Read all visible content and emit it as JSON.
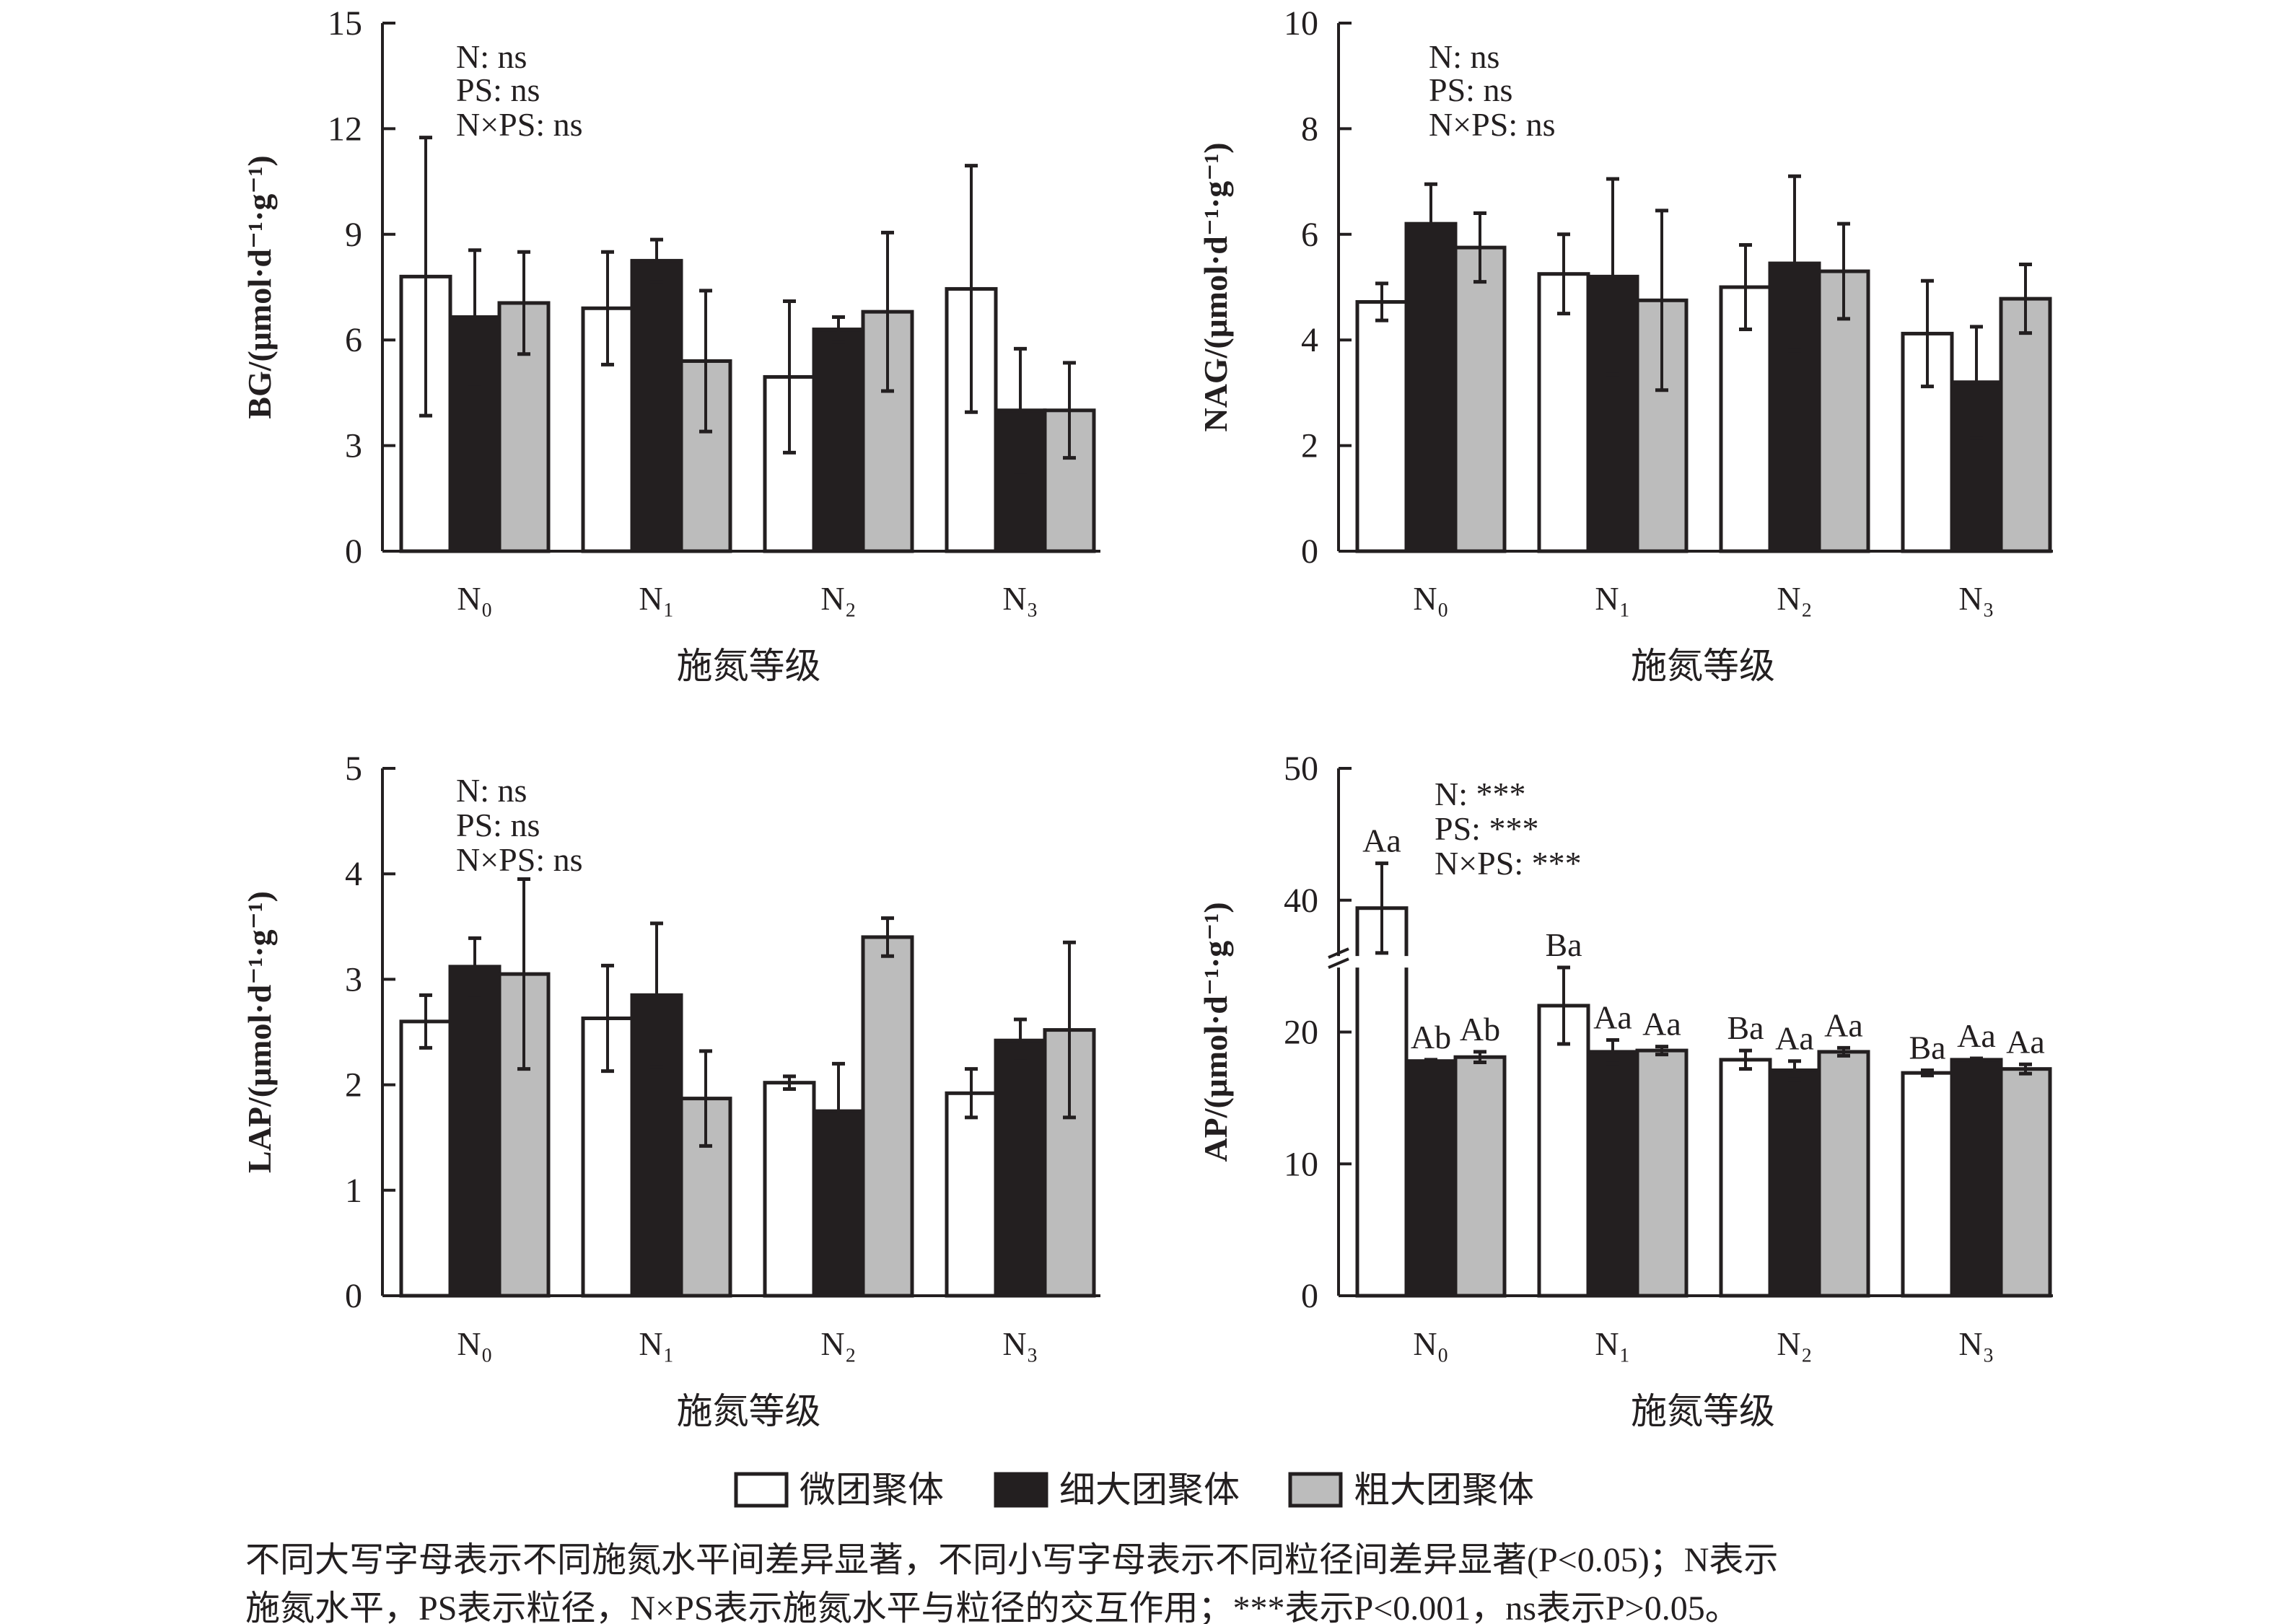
{
  "legend": [
    {
      "name": "微团聚体",
      "color": "#ffffff"
    },
    {
      "name": "细大团聚体",
      "color": "#231f20"
    },
    {
      "name": "粗大团聚体",
      "color": "#bcbcbc"
    }
  ],
  "caption": [
    "不同大写字母表示不同施氮水平间差异显著，不同小写字母表示不同粒径间差异显著(P<0.05)；N表示",
    "施氮水平，PS表示粒径，N×PS表示施氮水平与粒径的交互作用；***表示P<0.001，ns表示P>0.05。"
  ],
  "chart_data": [
    {
      "type": "bar",
      "ylabel": "BG/(μmol·d⁻¹·g⁻¹)",
      "xlabel": "施氮等级",
      "categories": [
        "N₀",
        "N₁",
        "N₂",
        "N₃"
      ],
      "ylim": [
        0,
        15
      ],
      "yticks": [
        0,
        3,
        6,
        9,
        12,
        15
      ],
      "annotations": [
        "N: ns",
        "PS: ns",
        "N×PS: ns"
      ],
      "series": [
        {
          "name": "微团聚体",
          "values": [
            7.8,
            6.9,
            4.95,
            7.45
          ],
          "errors": [
            3.95,
            1.6,
            2.15,
            3.5
          ]
        },
        {
          "name": "细大团聚体",
          "values": [
            6.65,
            8.25,
            6.3,
            4.0
          ],
          "errors": [
            1.9,
            0.6,
            0.35,
            1.75
          ]
        },
        {
          "name": "粗大团聚体",
          "values": [
            7.05,
            5.4,
            6.8,
            4.0
          ],
          "errors": [
            1.45,
            2.0,
            2.25,
            1.35
          ]
        }
      ]
    },
    {
      "type": "bar",
      "ylabel": "NAG/(μmol·d⁻¹·g⁻¹)",
      "xlabel": "施氮等级",
      "categories": [
        "N₀",
        "N₁",
        "N₂",
        "N₃"
      ],
      "ylim": [
        0,
        10
      ],
      "yticks": [
        0,
        2,
        4,
        6,
        8,
        10
      ],
      "annotations": [
        "N: ns",
        "PS: ns",
        "N×PS: ns"
      ],
      "series": [
        {
          "name": "微团聚体",
          "values": [
            4.72,
            5.25,
            5.0,
            4.12
          ],
          "errors": [
            0.35,
            0.75,
            0.8,
            1.0
          ]
        },
        {
          "name": "细大团聚体",
          "values": [
            6.2,
            5.2,
            5.45,
            3.2
          ],
          "errors": [
            0.75,
            1.85,
            1.65,
            1.05
          ]
        },
        {
          "name": "粗大团聚体",
          "values": [
            5.75,
            4.75,
            5.3,
            4.78
          ],
          "errors": [
            0.65,
            1.7,
            0.9,
            0.65
          ]
        }
      ]
    },
    {
      "type": "bar",
      "ylabel": "LAP/(μmol·d⁻¹·g⁻¹)",
      "xlabel": "施氮等级",
      "categories": [
        "N₀",
        "N₁",
        "N₂",
        "N₃"
      ],
      "ylim": [
        0,
        5
      ],
      "yticks": [
        0,
        1,
        2,
        3,
        4,
        5
      ],
      "annotations": [
        "N: ns",
        "PS: ns",
        "N×PS: ns"
      ],
      "series": [
        {
          "name": "微团聚体",
          "values": [
            2.6,
            2.63,
            2.02,
            1.92
          ],
          "errors": [
            0.25,
            0.5,
            0.06,
            0.23
          ]
        },
        {
          "name": "细大团聚体",
          "values": [
            3.12,
            2.85,
            1.75,
            2.42
          ],
          "errors": [
            0.27,
            0.68,
            0.45,
            0.2
          ]
        },
        {
          "name": "粗大团聚体",
          "values": [
            3.05,
            1.87,
            3.4,
            2.52
          ],
          "errors": [
            0.9,
            0.45,
            0.18,
            0.83
          ]
        }
      ]
    },
    {
      "type": "bar",
      "ylabel": "AP/(μmol·d⁻¹·g⁻¹)",
      "xlabel": "施氮等级",
      "categories": [
        "N₀",
        "N₁",
        "N₂",
        "N₃"
      ],
      "ylim": [
        0,
        50
      ],
      "axis_break": [
        25,
        35
      ],
      "yticks": [
        0,
        10,
        20,
        40,
        50
      ],
      "annotations": [
        "N: ***",
        "PS: ***",
        "N×PS: ***"
      ],
      "series": [
        {
          "name": "微团聚体",
          "values": [
            39.4,
            22.0,
            17.9,
            16.9
          ],
          "errors": [
            3.4,
            2.9,
            0.7,
            0.2
          ],
          "labels": [
            "Aa",
            "Ba",
            "Ba",
            "Ba"
          ]
        },
        {
          "name": "细大团聚体",
          "values": [
            17.8,
            18.5,
            17.1,
            17.9
          ],
          "errors": [
            0.1,
            0.9,
            0.7,
            0.1
          ],
          "labels": [
            "Ab",
            "Aa",
            "Aa",
            "Aa"
          ]
        },
        {
          "name": "粗大团聚体",
          "values": [
            18.1,
            18.6,
            18.5,
            17.2
          ],
          "errors": [
            0.4,
            0.3,
            0.3,
            0.35
          ],
          "labels": [
            "Ab",
            "Aa",
            "Aa",
            "Aa"
          ]
        }
      ]
    }
  ]
}
